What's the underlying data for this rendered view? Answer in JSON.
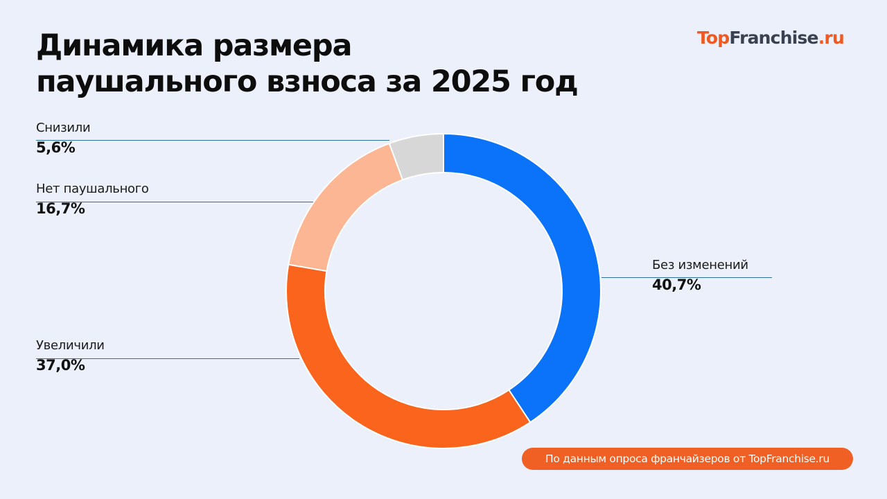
{
  "header": {
    "title_line1": "Динамика размера",
    "title_line2": "паушального взноса за 2025 год"
  },
  "logo": {
    "part1": "Top",
    "part2": "Franchise",
    "part3": ".ru"
  },
  "footer": {
    "source": "По данным опроса франчайзеров от TopFranchise.ru"
  },
  "labels": {
    "decreased": {
      "name": "Снизили",
      "value": "5,6%"
    },
    "no_fee": {
      "name": "Нет паушального",
      "value": "16,7%"
    },
    "no_change": {
      "name": "Без изменений",
      "value": "40,7%"
    },
    "increased": {
      "name": "Увеличили",
      "value": "37,0%"
    }
  },
  "chart_data": {
    "type": "pie",
    "subtype": "donut",
    "title": "Динамика размера паушального взноса за 2025 год",
    "categories": [
      "Без изменений",
      "Увеличили",
      "Нет паушального",
      "Снизили"
    ],
    "values": [
      40.7,
      37.0,
      16.7,
      5.6
    ],
    "colors": [
      "#0a73fa",
      "#fb641c",
      "#fdb694",
      "#d7d7d7"
    ],
    "unit": "%",
    "start_angle": "12 o'clock, clockwise",
    "source": "По данным опроса франчайзеров от TopFranchise.ru"
  }
}
